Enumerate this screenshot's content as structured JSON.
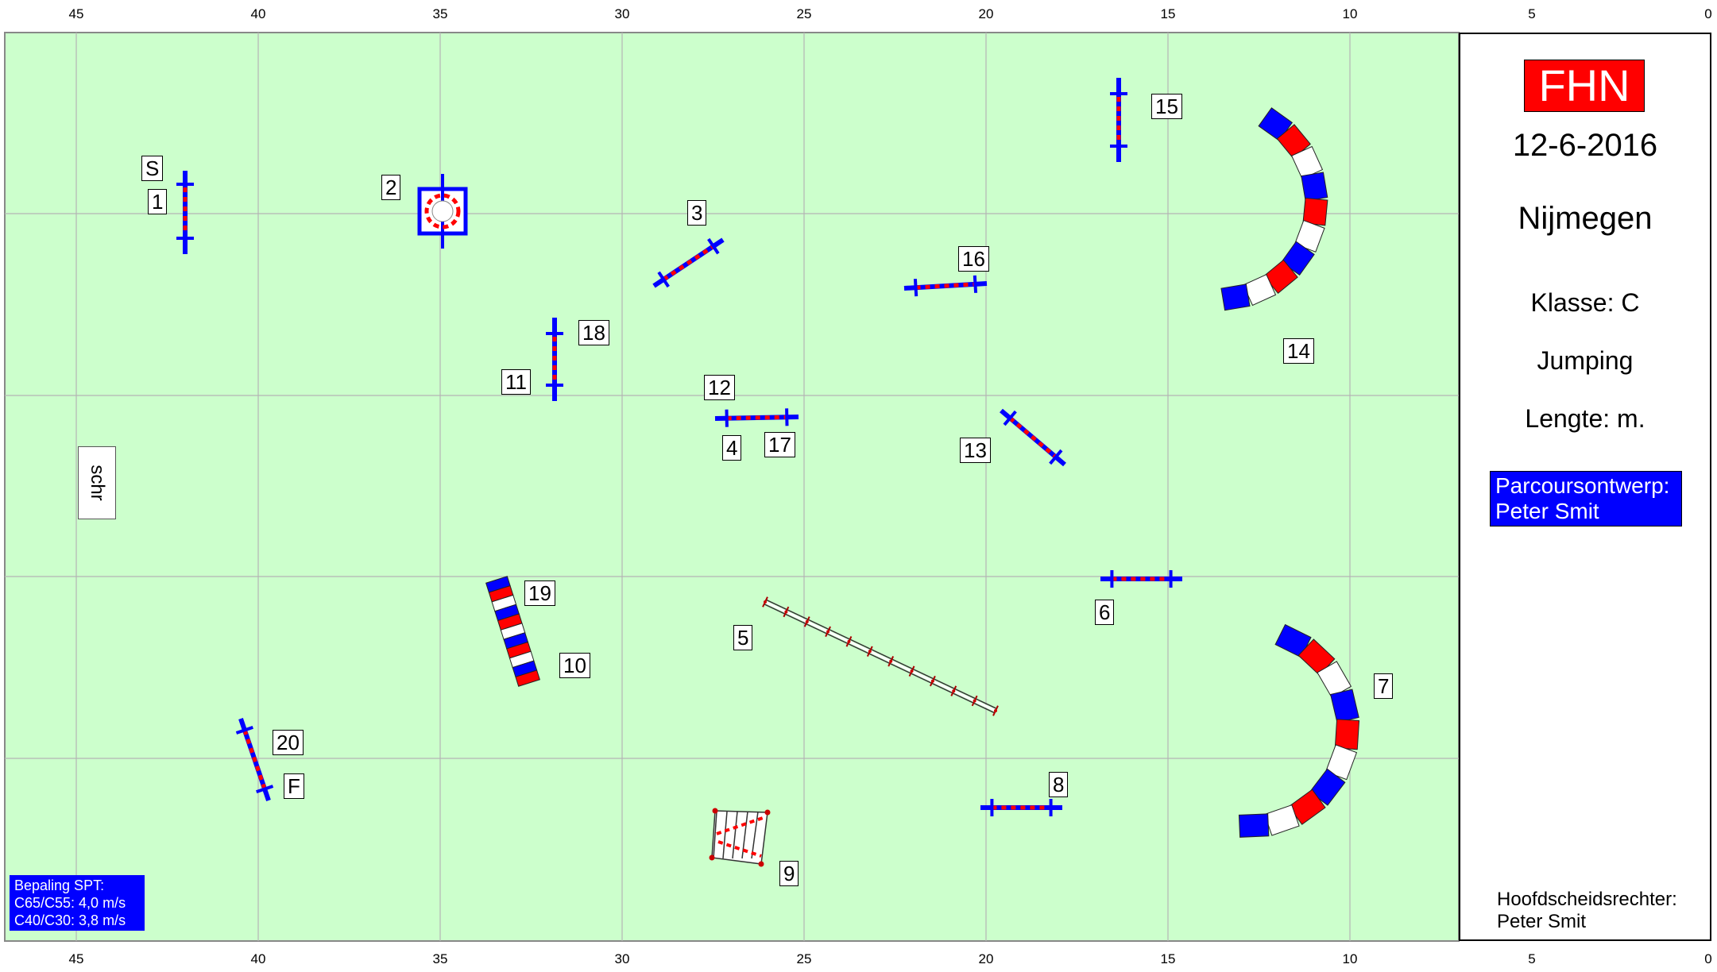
{
  "axis_ticks": [
    "45",
    "40",
    "35",
    "30",
    "25",
    "20",
    "15",
    "10",
    "5",
    "0"
  ],
  "panel": {
    "brand": "FHN",
    "date": "12-6-2016",
    "location": "Nijmegen",
    "class": "Klasse: C",
    "discipline": "Jumping",
    "length": "Lengte:  m.",
    "designer_line1": "Parcoursontwerp:",
    "designer_line2": "Peter Smit",
    "judge_line1": "Hoofdscheidsrechter:",
    "judge_line2": "Peter Smit"
  },
  "spt": {
    "line1": "Bepaling SPT:",
    "line2": "C65/C55: 4,0 m/s",
    "line3": "C40/C30: 3,8 m/s"
  },
  "schr": "schr",
  "labels": {
    "s": "S",
    "f": "F",
    "n1": "1",
    "n2": "2",
    "n3": "3",
    "n4": "4",
    "n5": "5",
    "n6": "6",
    "n7": "7",
    "n8": "8",
    "n9": "9",
    "n10": "10",
    "n11": "11",
    "n12": "12",
    "n13": "13",
    "n14": "14",
    "n15": "15",
    "n16": "16",
    "n17": "17",
    "n18": "18",
    "n19": "19",
    "n20": "20"
  },
  "colors": {
    "arena": "#ccffcc",
    "grid": "#b0b0b0",
    "standard": "#0000ff",
    "pole_red": "#ff0000",
    "brand_bg": "#ff0000",
    "designer_bg": "#0000ff"
  }
}
